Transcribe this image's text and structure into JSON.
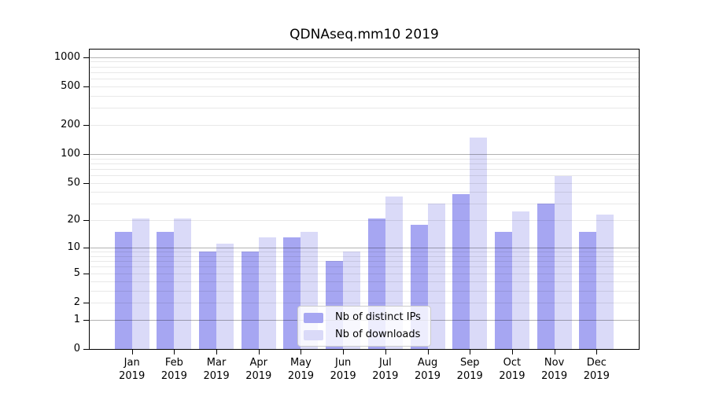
{
  "figure": {
    "title": "QDNAseq.mm10 2019"
  },
  "chart_data": {
    "type": "bar",
    "title": "QDNAseq.mm10 2019",
    "x_categories": [
      "Jan",
      "Feb",
      "Mar",
      "Apr",
      "May",
      "Jun",
      "Jul",
      "Aug",
      "Sep",
      "Oct",
      "Nov",
      "Dec"
    ],
    "x_year": "2019",
    "series": [
      {
        "name": "Nb of distinct IPs",
        "color": "#a6a6f2",
        "values": [
          15,
          15,
          9,
          9,
          13,
          7,
          21,
          18,
          38,
          15,
          30,
          15
        ]
      },
      {
        "name": "Nb of downloads",
        "color": "#dadaf8",
        "values": [
          21,
          21,
          11,
          13,
          15,
          9,
          36,
          30,
          147,
          25,
          59,
          23
        ]
      }
    ],
    "y_scale": "log1p",
    "ylim": [
      0,
      1200
    ],
    "y_ticks": [
      0,
      1,
      2,
      5,
      10,
      20,
      50,
      100,
      200,
      500,
      1000
    ],
    "y_major_gridlines": [
      1,
      10,
      100,
      1000
    ],
    "y_minor_gridlines": [
      2,
      3,
      4,
      5,
      6,
      7,
      8,
      9,
      20,
      30,
      40,
      50,
      60,
      70,
      80,
      90,
      200,
      300,
      400,
      500,
      600,
      700,
      800,
      900
    ],
    "grid": "on",
    "legend_position": "lower center",
    "colors": {
      "bar_distinct_ips": "#a6a6f2",
      "bar_downloads": "#dadaf8",
      "major_grid": "#b3b3b3",
      "minor_grid": "#e8e8e8",
      "axis": "#000000",
      "legend_border": "#cccccc"
    }
  }
}
